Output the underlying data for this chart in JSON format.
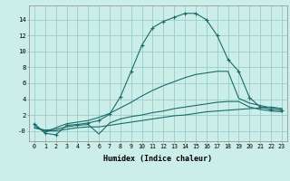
{
  "xlabel": "Humidex (Indice chaleur)",
  "xlim": [
    -0.5,
    23.5
  ],
  "ylim": [
    -1.3,
    15.8
  ],
  "yticks": [
    0,
    2,
    4,
    6,
    8,
    10,
    12,
    14
  ],
  "ytick_labels": [
    "-0",
    "2",
    "4",
    "6",
    "8",
    "10",
    "12",
    "14"
  ],
  "xticks": [
    0,
    1,
    2,
    3,
    4,
    5,
    6,
    7,
    8,
    9,
    10,
    11,
    12,
    13,
    14,
    15,
    16,
    17,
    18,
    19,
    20,
    21,
    22,
    23
  ],
  "bg_color": "#cceee8",
  "grid_color": "#99cccc",
  "line_color": "#1a6b6b",
  "lines": [
    {
      "x": [
        0,
        1,
        2,
        3,
        4,
        5,
        6,
        7,
        8,
        9,
        10,
        11,
        12,
        13,
        14,
        15,
        16,
        17,
        18,
        19,
        20,
        21,
        22,
        23
      ],
      "y": [
        0.9,
        -0.3,
        -0.5,
        0.7,
        0.8,
        1.0,
        1.3,
        2.1,
        4.3,
        7.5,
        10.8,
        13.0,
        13.8,
        14.3,
        14.8,
        14.8,
        14.0,
        12.0,
        9.0,
        7.5,
        4.2,
        3.0,
        2.7,
        2.6
      ],
      "marker": "+",
      "markersize": 3.5
    },
    {
      "x": [
        0,
        1,
        2,
        3,
        4,
        5,
        6,
        7,
        8,
        9,
        10,
        11,
        12,
        13,
        14,
        15,
        16,
        17,
        18,
        19,
        20,
        21,
        22,
        23
      ],
      "y": [
        0.7,
        -0.2,
        0.4,
        0.9,
        1.1,
        1.3,
        1.7,
        2.2,
        2.9,
        3.6,
        4.4,
        5.1,
        5.7,
        6.2,
        6.7,
        7.1,
        7.3,
        7.5,
        7.5,
        4.1,
        3.5,
        3.2,
        2.9,
        2.8
      ],
      "marker": null
    },
    {
      "x": [
        0,
        1,
        2,
        3,
        4,
        5,
        6,
        7,
        8,
        9,
        10,
        11,
        12,
        13,
        14,
        15,
        16,
        17,
        18,
        19,
        20,
        21,
        22,
        23
      ],
      "y": [
        0.4,
        0.1,
        0.2,
        0.5,
        0.7,
        0.8,
        -0.4,
        1.0,
        1.5,
        1.8,
        2.0,
        2.3,
        2.5,
        2.8,
        3.0,
        3.2,
        3.4,
        3.6,
        3.7,
        3.7,
        3.0,
        2.7,
        2.5,
        2.4
      ],
      "marker": null
    },
    {
      "x": [
        0,
        1,
        2,
        3,
        4,
        5,
        6,
        7,
        8,
        9,
        10,
        11,
        12,
        13,
        14,
        15,
        16,
        17,
        18,
        19,
        20,
        21,
        22,
        23
      ],
      "y": [
        0.4,
        0.0,
        0.0,
        0.2,
        0.4,
        0.5,
        0.5,
        0.7,
        0.9,
        1.1,
        1.3,
        1.5,
        1.7,
        1.9,
        2.0,
        2.2,
        2.4,
        2.5,
        2.6,
        2.7,
        2.8,
        2.9,
        3.0,
        2.8
      ],
      "marker": null
    }
  ]
}
